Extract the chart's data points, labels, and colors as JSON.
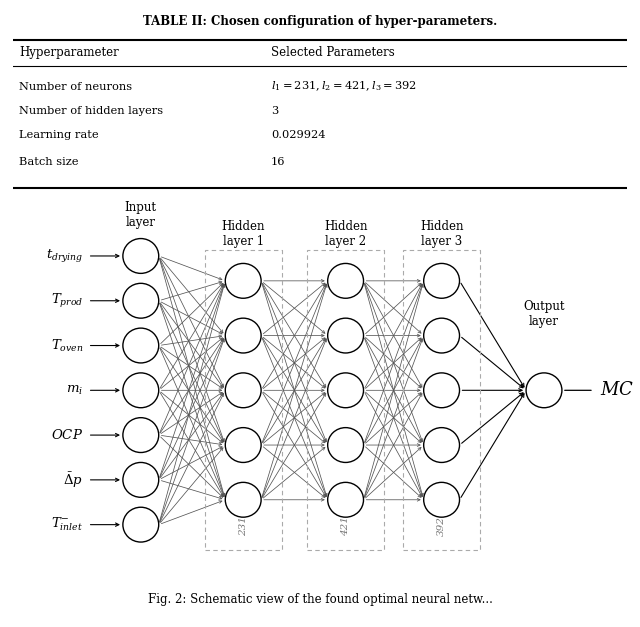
{
  "fig_width": 6.4,
  "fig_height": 6.27,
  "dpi": 100,
  "background_color": "#ffffff",
  "table_title": "TABLE II: Chosen configuration of hyper-parameters.",
  "table_headers": [
    "Hyperparameter",
    "Selected Parameters"
  ],
  "table_rows": [
    [
      "Number of neurons",
      "$l_1 = 231,\\; l_2 = 421,\\; l_3 = 392$"
    ],
    [
      "Number of hidden layers",
      "3"
    ],
    [
      "Learning rate",
      "0.029924"
    ],
    [
      "Batch size",
      "16"
    ]
  ],
  "input_labels": [
    "$t_{drying}$",
    "$T_{prod}$",
    "$T_{oven}$",
    "$m_i$",
    "$OCP$",
    "$\\bar{\\Delta}p$",
    "$T_{inlet}^{-}$"
  ],
  "hidden_labels": [
    "Hidden\nlayer 1",
    "Hidden\nlayer 2",
    "Hidden\nlayer 3"
  ],
  "hidden_counts": [
    "231",
    "421",
    "392"
  ],
  "input_layer_label": "Input\nlayer",
  "output_layer_label": "Output\nlayer",
  "output_label": "$\\mathit{MC}$",
  "node_color": "#ffffff",
  "node_edge_color": "#000000",
  "line_color": "#555555",
  "arrow_color": "#000000",
  "caption": "Fig. 2: Schematic view of the found optimal neural netw..."
}
